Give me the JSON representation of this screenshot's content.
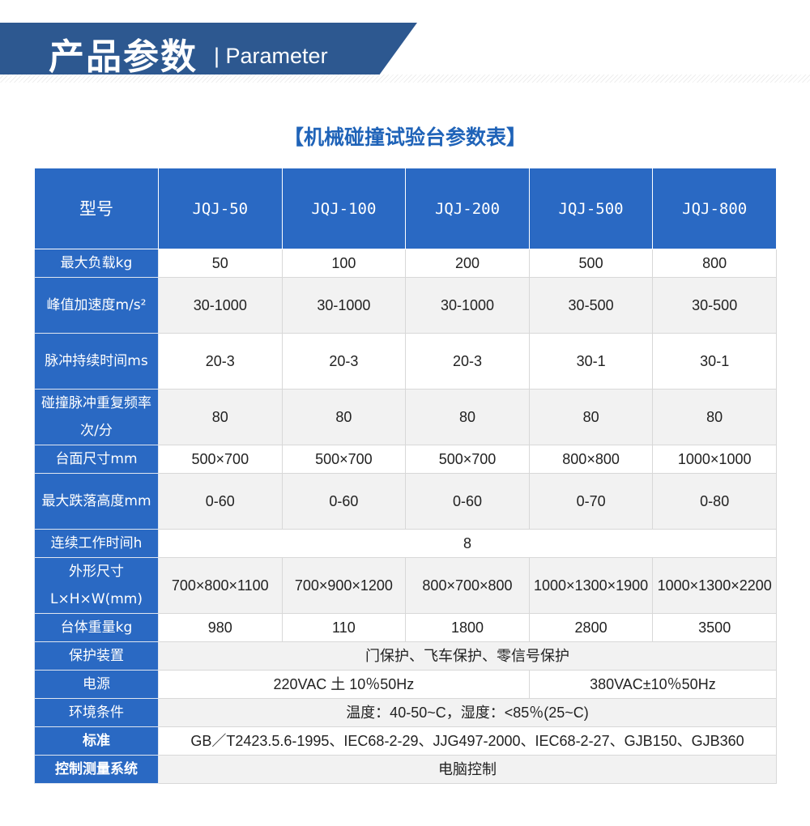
{
  "banner": {
    "title": "产品参数",
    "subtitle": "| Parameter"
  },
  "table_title": "【机械碰撞试验台参数表】",
  "colors": {
    "banner": "#2d5890",
    "header": "#2a69c3",
    "title": "#1f63b8"
  },
  "header": [
    "型号",
    "JQJ-50",
    "JQJ-100",
    "JQJ-200",
    "JQJ-500",
    "JQJ-800"
  ],
  "rows": [
    {
      "label": "最大负载kg",
      "values": [
        "50",
        "100",
        "200",
        "500",
        "800"
      ]
    },
    {
      "label": "峰值加速度m/s²",
      "values": [
        "30-1000",
        "30-1000",
        "30-1000",
        "30-500",
        "30-500"
      ]
    },
    {
      "label": "脉冲持续时间ms",
      "values": [
        "20-3",
        "20-3",
        "20-3",
        "30-1",
        "30-1"
      ]
    },
    {
      "label": "碰撞脉冲重复频率次/分",
      "values": [
        "80",
        "80",
        "80",
        "80",
        "80"
      ]
    },
    {
      "label": "台面尺寸mm",
      "values": [
        "500×700",
        "500×700",
        "500×700",
        "800×800",
        "1000×1000"
      ]
    },
    {
      "label": "最大跌落高度mm",
      "values": [
        "0-60",
        "0-60",
        "0-60",
        "0-70",
        "0-80"
      ]
    },
    {
      "label": "连续工作时间h",
      "span": "8"
    },
    {
      "label": "外形尺寸L×H×W(mm)",
      "values": [
        "700×800×1100",
        "700×900×1200",
        "800×700×800",
        "1000×1300×1900",
        "1000×1300×2200"
      ]
    },
    {
      "label": "台体重量kg",
      "values": [
        "980",
        "110",
        "1800",
        "2800",
        "3500"
      ]
    },
    {
      "label": "保护装置",
      "span": "门保护、飞车保护、零信号保护"
    },
    {
      "label": "电源",
      "split": [
        "220VAC 土 10％50Hz",
        "380VAC±10％50Hz"
      ]
    },
    {
      "label": "环境条件",
      "span": "温度：40-50~C，湿度：<85％(25~C)"
    },
    {
      "label": "标准",
      "span": "GB／T2423.5.6-1995、IEC68-2-29、JJG497-2000、IEC68-2-27、GJB150、GJB360"
    },
    {
      "label": "控制测量系统",
      "span": "电脑控制"
    }
  ]
}
